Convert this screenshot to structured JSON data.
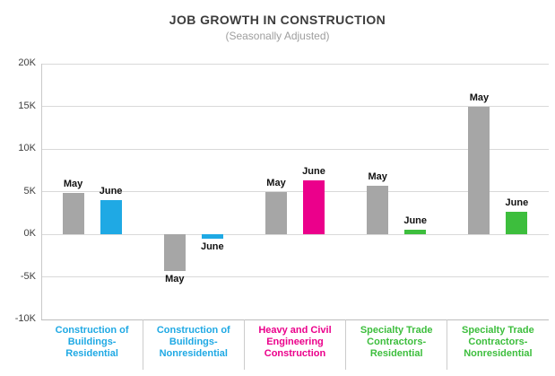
{
  "header": {
    "title": "JOB GROWTH IN CONSTRUCTION",
    "subtitle": "(Seasonally Adjusted)"
  },
  "chart_data": {
    "type": "bar",
    "title": "JOB GROWTH IN CONSTRUCTION",
    "subtitle": "(Seasonally Adjusted)",
    "xlabel": "",
    "ylabel": "",
    "ylim": [
      -10000,
      20000
    ],
    "ytick_step": 5000,
    "ytick_labels": [
      "-10K",
      "-5K",
      "0K",
      "5K",
      "10K",
      "15K",
      "20K"
    ],
    "grid": true,
    "legend_position": "none",
    "bar_value_labels": [
      "May",
      "June"
    ],
    "categories": [
      {
        "label": "Construction of Buildings-Residential",
        "lines": [
          "Construction of",
          "Buildings-",
          "Residential"
        ],
        "color": "#1fa9e4"
      },
      {
        "label": "Construction of Buildings-Nonresidential",
        "lines": [
          "Construction of",
          "Buildings-",
          "Nonresidential"
        ],
        "color": "#1fa9e4"
      },
      {
        "label": "Heavy and Civil Engineering Construction",
        "lines": [
          "Heavy and Civil",
          "Engineering",
          "Construction"
        ],
        "color": "#eb008b"
      },
      {
        "label": "Specialty Trade Contractors-Residential",
        "lines": [
          "Specialty Trade",
          "Contractors-",
          "Residential"
        ],
        "color": "#3dbe3d"
      },
      {
        "label": "Specialty Trade Contractors-Nonresidential",
        "lines": [
          "Specialty Trade",
          "Contractors-",
          "Nonresidential"
        ],
        "color": "#3dbe3d"
      }
    ],
    "series": [
      {
        "name": "May",
        "color": "#a6a6a6",
        "values": [
          4800,
          -4300,
          5000,
          5700,
          14900
        ]
      },
      {
        "name": "June",
        "colors": [
          "#1fa9e4",
          "#1fa9e4",
          "#eb008b",
          "#3dbe3d",
          "#3dbe3d"
        ],
        "values": [
          4000,
          -500,
          6300,
          500,
          2600
        ]
      }
    ]
  },
  "colors": {
    "may_bar": "#a6a6a6",
    "blue": "#1fa9e4",
    "magenta": "#eb008b",
    "green": "#3dbe3d",
    "gridline": "#d9d9d9"
  }
}
